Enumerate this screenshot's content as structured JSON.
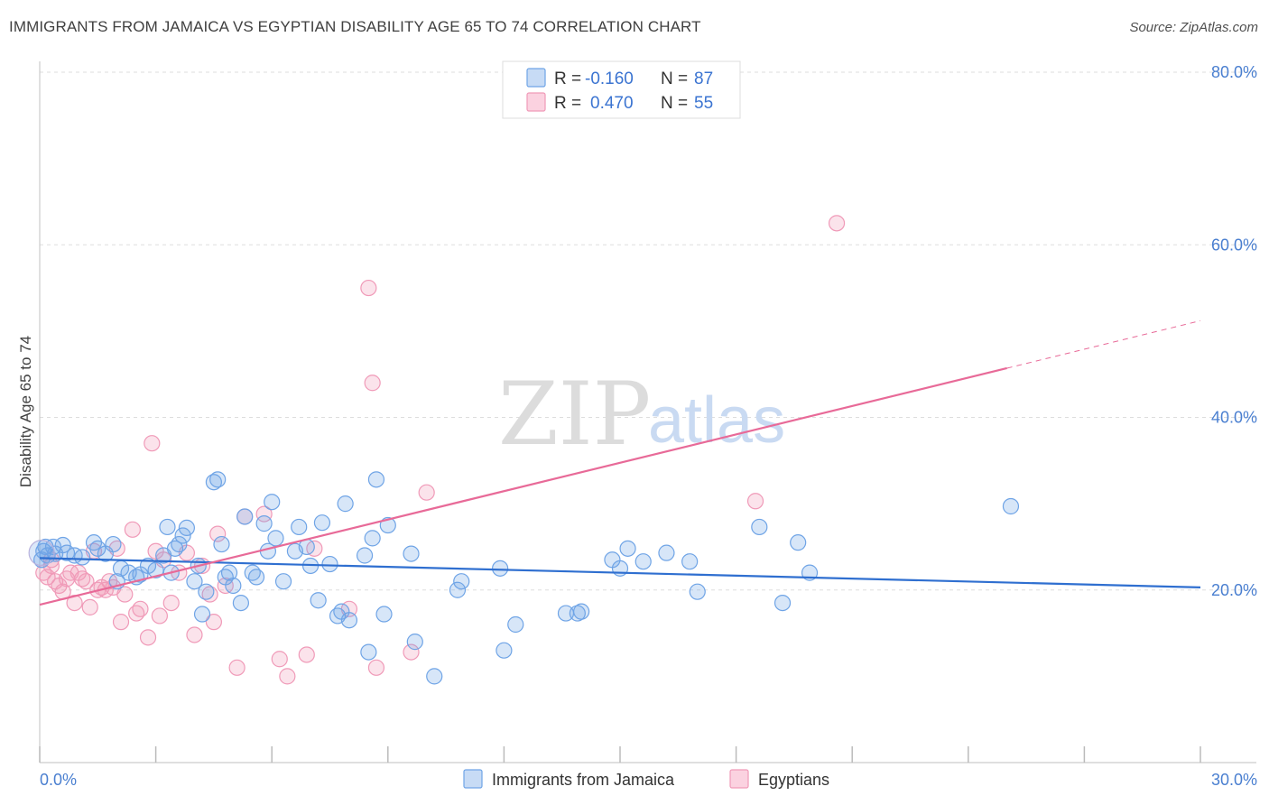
{
  "header": {
    "title": "IMMIGRANTS FROM JAMAICA VS EGYPTIAN DISABILITY AGE 65 TO 74 CORRELATION CHART",
    "source": "Source: ZipAtlas.com"
  },
  "legend": {
    "rows": [
      {
        "r_label": "R =",
        "r_value": "-0.160",
        "n_label": "N =",
        "n_value": "87",
        "color": "#6fa4e6"
      },
      {
        "r_label": "R =",
        "r_value": "0.470",
        "n_label": "N =",
        "n_value": "55",
        "color": "#f09ab8"
      }
    ]
  },
  "bottom_legend": {
    "items": [
      {
        "label": "Immigrants from Jamaica",
        "color": "#6fa4e6"
      },
      {
        "label": "Egyptians",
        "color": "#f09ab8"
      }
    ]
  },
  "watermark": {
    "zip": "ZIP",
    "atlas": "atlas"
  },
  "chart_data": {
    "type": "scatter",
    "ylabel": "Disability Age 65 to 74",
    "xlim": [
      0,
      30
    ],
    "ylim": [
      0,
      80
    ],
    "x_tick_labels": [
      "0.0%",
      "30.0%"
    ],
    "y_ticks": [
      20,
      40,
      60,
      80
    ],
    "y_tick_labels": [
      "20.0%",
      "40.0%",
      "60.0%",
      "80.0%"
    ],
    "grid": true,
    "series": [
      {
        "name": "Immigrants from Jamaica",
        "color": "#6fa4e6",
        "trend": {
          "x0": 0,
          "y0": 23.7,
          "x1": 30,
          "y1": 20.3,
          "dashed_from": 30
        },
        "points": [
          [
            0.1,
            24.5
          ],
          [
            0.2,
            24.0
          ],
          [
            0.35,
            25.0
          ],
          [
            0.4,
            24.2
          ],
          [
            0.6,
            25.2
          ],
          [
            0.7,
            24.3
          ],
          [
            0.9,
            24.0
          ],
          [
            1.1,
            23.8
          ],
          [
            1.4,
            25.5
          ],
          [
            1.5,
            24.8
          ],
          [
            1.7,
            24.2
          ],
          [
            1.9,
            25.3
          ],
          [
            2.1,
            22.5
          ],
          [
            2.3,
            22.0
          ],
          [
            2.5,
            21.5
          ],
          [
            2.6,
            21.8
          ],
          [
            2.8,
            22.8
          ],
          [
            3.0,
            22.3
          ],
          [
            3.2,
            24.0
          ],
          [
            3.3,
            27.3
          ],
          [
            3.5,
            24.8
          ],
          [
            3.6,
            25.3
          ],
          [
            3.7,
            26.3
          ],
          [
            3.8,
            27.2
          ],
          [
            4.0,
            21.0
          ],
          [
            4.1,
            22.8
          ],
          [
            4.2,
            17.2
          ],
          [
            4.3,
            19.8
          ],
          [
            4.5,
            32.5
          ],
          [
            4.6,
            32.8
          ],
          [
            4.7,
            25.3
          ],
          [
            4.8,
            21.5
          ],
          [
            4.9,
            22.0
          ],
          [
            5.0,
            20.5
          ],
          [
            5.2,
            18.5
          ],
          [
            5.3,
            28.5
          ],
          [
            5.5,
            22.0
          ],
          [
            5.6,
            21.5
          ],
          [
            5.8,
            27.7
          ],
          [
            5.9,
            24.5
          ],
          [
            6.0,
            30.2
          ],
          [
            6.1,
            26.0
          ],
          [
            6.3,
            21.0
          ],
          [
            6.6,
            24.5
          ],
          [
            6.7,
            27.3
          ],
          [
            6.9,
            25.0
          ],
          [
            7.0,
            22.8
          ],
          [
            7.2,
            18.8
          ],
          [
            7.3,
            27.8
          ],
          [
            7.5,
            23.0
          ],
          [
            7.7,
            17.0
          ],
          [
            7.8,
            17.5
          ],
          [
            7.9,
            30.0
          ],
          [
            8.0,
            16.5
          ],
          [
            8.4,
            24.0
          ],
          [
            8.5,
            12.8
          ],
          [
            8.6,
            26.0
          ],
          [
            8.7,
            32.8
          ],
          [
            8.9,
            17.2
          ],
          [
            9.0,
            27.5
          ],
          [
            9.6,
            24.2
          ],
          [
            9.7,
            14.0
          ],
          [
            10.2,
            10.0
          ],
          [
            10.8,
            20.0
          ],
          [
            10.9,
            21.0
          ],
          [
            11.9,
            22.5
          ],
          [
            12.0,
            13.0
          ],
          [
            12.3,
            16.0
          ],
          [
            13.6,
            17.3
          ],
          [
            13.9,
            17.3
          ],
          [
            14.0,
            17.5
          ],
          [
            14.8,
            23.5
          ],
          [
            15.0,
            22.5
          ],
          [
            15.2,
            24.8
          ],
          [
            15.6,
            23.3
          ],
          [
            16.2,
            24.3
          ],
          [
            16.8,
            23.3
          ],
          [
            17.0,
            19.8
          ],
          [
            18.6,
            27.3
          ],
          [
            19.2,
            18.5
          ],
          [
            19.6,
            25.5
          ],
          [
            19.9,
            22.0
          ],
          [
            25.1,
            29.7
          ],
          [
            0.05,
            23.5
          ],
          [
            0.15,
            25.0
          ],
          [
            2.0,
            21.0
          ],
          [
            3.4,
            22.0
          ]
        ]
      },
      {
        "name": "Egyptians",
        "color": "#f09ab8",
        "trend": {
          "x0": 0,
          "y0": 18.3,
          "x1": 25.0,
          "y1": 45.7,
          "dashed_from": 25.0,
          "x2": 30,
          "y2": 51.2
        },
        "points": [
          [
            0.1,
            22.0
          ],
          [
            0.2,
            21.5
          ],
          [
            0.3,
            22.8
          ],
          [
            0.4,
            21.0
          ],
          [
            0.5,
            20.5
          ],
          [
            0.6,
            19.8
          ],
          [
            0.7,
            21.3
          ],
          [
            0.8,
            22.0
          ],
          [
            0.9,
            18.5
          ],
          [
            1.0,
            22.0
          ],
          [
            1.1,
            21.3
          ],
          [
            1.2,
            21.0
          ],
          [
            1.3,
            18.0
          ],
          [
            1.5,
            20.0
          ],
          [
            1.6,
            20.3
          ],
          [
            1.7,
            20.0
          ],
          [
            1.8,
            21.0
          ],
          [
            1.9,
            20.3
          ],
          [
            2.0,
            24.8
          ],
          [
            2.1,
            16.3
          ],
          [
            2.2,
            19.5
          ],
          [
            2.4,
            27.0
          ],
          [
            2.5,
            17.3
          ],
          [
            2.6,
            17.8
          ],
          [
            2.8,
            14.5
          ],
          [
            2.9,
            37.0
          ],
          [
            3.0,
            24.5
          ],
          [
            3.1,
            17.0
          ],
          [
            3.2,
            23.5
          ],
          [
            3.4,
            18.5
          ],
          [
            3.6,
            22.0
          ],
          [
            3.8,
            24.3
          ],
          [
            4.0,
            14.8
          ],
          [
            4.2,
            22.8
          ],
          [
            4.4,
            19.5
          ],
          [
            4.5,
            16.3
          ],
          [
            4.6,
            26.5
          ],
          [
            4.8,
            20.5
          ],
          [
            5.1,
            11.0
          ],
          [
            5.3,
            28.5
          ],
          [
            5.8,
            28.8
          ],
          [
            6.2,
            12.0
          ],
          [
            6.4,
            10.0
          ],
          [
            6.9,
            12.5
          ],
          [
            7.1,
            24.8
          ],
          [
            8.5,
            55.0
          ],
          [
            8.6,
            44.0
          ],
          [
            8.7,
            11.0
          ],
          [
            9.6,
            12.8
          ],
          [
            10.0,
            31.3
          ],
          [
            0.3,
            23.5
          ],
          [
            1.4,
            24.5
          ],
          [
            8.0,
            17.8
          ],
          [
            18.5,
            30.3
          ],
          [
            20.6,
            62.5
          ]
        ]
      }
    ]
  }
}
